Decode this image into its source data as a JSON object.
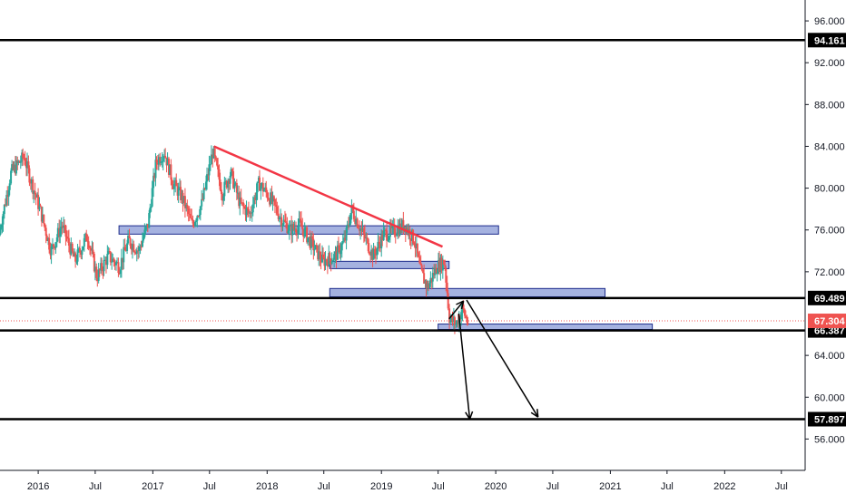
{
  "chart_data": {
    "type": "candlestick",
    "title": "",
    "xlabel": "",
    "ylabel": "",
    "x_range": [
      "2015-09-01",
      "2022-09-15"
    ],
    "ylim": [
      53.0,
      98.0
    ],
    "grid": false,
    "y_ticks": [
      "96.000",
      "92.000",
      "88.000",
      "84.000",
      "80.000",
      "76.000",
      "72.000",
      "64.000",
      "60.000",
      "56.000"
    ],
    "x_ticks": [
      {
        "date": "2016-01-01",
        "label": "2016"
      },
      {
        "date": "2016-07-01",
        "label": "Jul"
      },
      {
        "date": "2017-01-01",
        "label": "2017"
      },
      {
        "date": "2017-07-01",
        "label": "Jul"
      },
      {
        "date": "2018-01-01",
        "label": "2018"
      },
      {
        "date": "2018-07-01",
        "label": "Jul"
      },
      {
        "date": "2019-01-01",
        "label": "2019"
      },
      {
        "date": "2019-07-01",
        "label": "Jul"
      },
      {
        "date": "2020-01-01",
        "label": "2020"
      },
      {
        "date": "2020-07-01",
        "label": "Jul"
      },
      {
        "date": "2021-01-01",
        "label": "2021"
      },
      {
        "date": "2021-07-01",
        "label": "Jul"
      },
      {
        "date": "2022-01-01",
        "label": "2022"
      },
      {
        "date": "2022-07-01",
        "label": "Jul"
      }
    ],
    "price_path": [
      [
        "2015-09-01",
        75.5
      ],
      [
        "2015-10-10",
        81.5
      ],
      [
        "2015-11-20",
        83.0
      ],
      [
        "2015-12-20",
        80.0
      ],
      [
        "2016-01-10",
        78.0
      ],
      [
        "2016-02-15",
        74.0
      ],
      [
        "2016-03-20",
        76.5
      ],
      [
        "2016-05-01",
        73.0
      ],
      [
        "2016-06-10",
        75.5
      ],
      [
        "2016-07-10",
        71.5
      ],
      [
        "2016-08-15",
        73.5
      ],
      [
        "2016-09-20",
        72.5
      ],
      [
        "2016-10-20",
        75.0
      ],
      [
        "2016-11-20",
        74.0
      ],
      [
        "2016-12-20",
        76.5
      ],
      [
        "2017-01-15",
        82.5
      ],
      [
        "2017-02-10",
        83.5
      ],
      [
        "2017-03-10",
        80.5
      ],
      [
        "2017-04-10",
        79.0
      ],
      [
        "2017-05-10",
        76.5
      ],
      [
        "2017-06-10",
        78.5
      ],
      [
        "2017-07-15",
        83.5
      ],
      [
        "2017-08-15",
        79.5
      ],
      [
        "2017-09-10",
        81.5
      ],
      [
        "2017-10-10",
        78.5
      ],
      [
        "2017-11-10",
        77.5
      ],
      [
        "2017-12-10",
        80.5
      ],
      [
        "2018-01-15",
        79.0
      ],
      [
        "2018-02-20",
        77.0
      ],
      [
        "2018-03-20",
        76.0
      ],
      [
        "2018-04-20",
        76.5
      ],
      [
        "2018-05-20",
        75.0
      ],
      [
        "2018-07-01",
        73.0
      ],
      [
        "2018-08-10",
        73.5
      ],
      [
        "2018-09-10",
        75.0
      ],
      [
        "2018-10-01",
        78.0
      ],
      [
        "2018-11-01",
        76.0
      ],
      [
        "2018-12-10",
        73.5
      ],
      [
        "2019-01-10",
        75.5
      ],
      [
        "2019-02-20",
        76.0
      ],
      [
        "2019-03-20",
        76.5
      ],
      [
        "2019-04-20",
        75.0
      ],
      [
        "2019-05-10",
        72.0
      ],
      [
        "2019-06-01",
        70.5
      ],
      [
        "2019-07-01",
        72.5
      ],
      [
        "2019-07-25",
        73.0
      ],
      [
        "2019-08-10",
        67.5
      ],
      [
        "2019-09-01",
        67.0
      ],
      [
        "2019-09-20",
        68.5
      ],
      [
        "2019-10-05",
        67.3
      ]
    ],
    "horizontal_levels": [
      {
        "value": 94.161,
        "label": "94.161"
      },
      {
        "value": 69.489,
        "label": "69.489"
      },
      {
        "value": 66.387,
        "label": "66.387"
      },
      {
        "value": 57.897,
        "label": "57.897"
      }
    ],
    "current_price": {
      "value": 67.304,
      "label": "67.304",
      "color": "#ef5350"
    },
    "zones": [
      {
        "x0": "2016-09-15",
        "x1": "2020-01-10",
        "y0": 75.6,
        "y1": 76.4
      },
      {
        "x0": "2018-07-20",
        "x1": "2019-08-05",
        "y0": 72.3,
        "y1": 73.0
      },
      {
        "x0": "2018-07-20",
        "x1": "2020-12-15",
        "y0": 69.6,
        "y1": 70.4
      },
      {
        "x0": "2019-07-01",
        "x1": "2021-05-15",
        "y0": 66.5,
        "y1": 67.0
      }
    ],
    "trendline": {
      "x0": "2017-07-15",
      "y0": 84.0,
      "x1": "2019-07-15",
      "y1": 74.4,
      "color": "#f23645"
    },
    "arrows": [
      {
        "x0": "2019-08-05",
        "y0": 67.5,
        "x1": "2019-09-20",
        "y1": 69.2
      },
      {
        "x0": "2019-09-05",
        "y0": 68.0,
        "x1": "2019-10-10",
        "y1": 57.9
      },
      {
        "x0": "2019-09-30",
        "y0": 69.3,
        "x1": "2020-05-15",
        "y1": 58.1
      }
    ],
    "colors": {
      "up": "#26a69a",
      "down": "#ef5350",
      "zone_fill": "#5b73c7",
      "zone_stroke": "#1e2d8c",
      "level": "#000000"
    }
  }
}
